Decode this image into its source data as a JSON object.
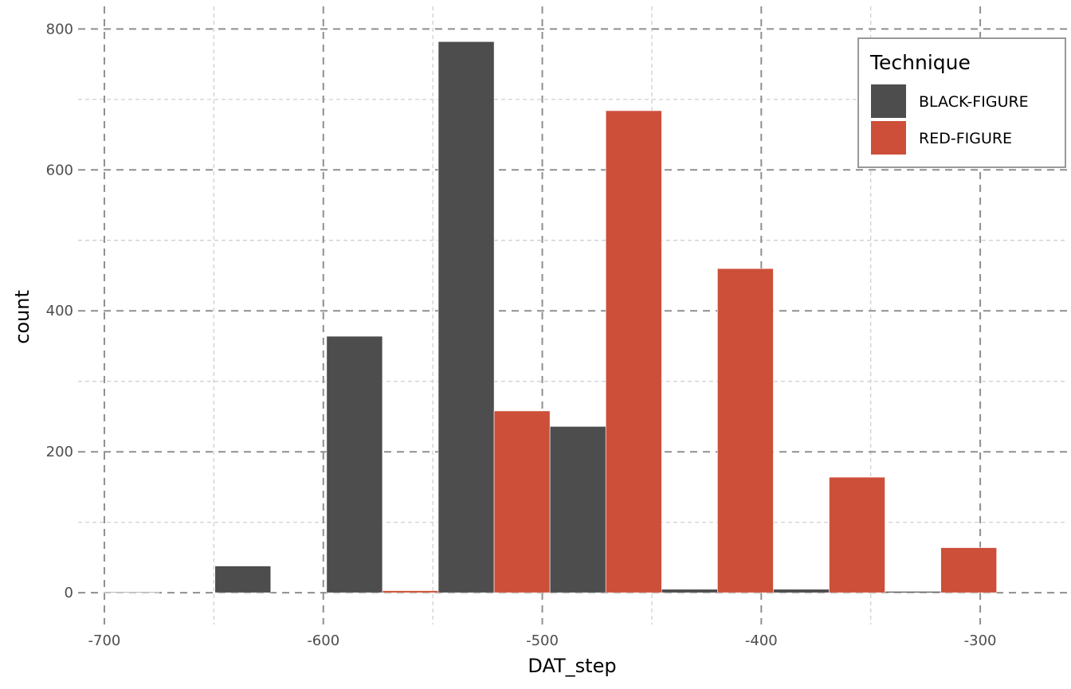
{
  "chart_data": {
    "type": "bar",
    "xlabel": "DAT_step",
    "ylabel": "count",
    "xlim": [
      -712,
      -260
    ],
    "ylim": [
      -45,
      832
    ],
    "x_major_ticks": [
      -700,
      -600,
      -500,
      -400,
      -300
    ],
    "x_tick_labels": [
      "-700",
      "-600",
      "-500",
      "-400",
      "-300"
    ],
    "x_minor_ticks": [
      -650,
      -550,
      -450,
      -350
    ],
    "y_major_ticks": [
      0,
      200,
      400,
      600,
      800
    ],
    "y_tick_labels": [
      "0",
      "200",
      "400",
      "600",
      "800"
    ],
    "y_minor_ticks": [
      100,
      300,
      500,
      700
    ],
    "grid": true,
    "bin_width": 51,
    "categories": [
      -675,
      -624,
      -573,
      -522,
      -471,
      -420,
      -369,
      -318
    ],
    "series": [
      {
        "name": "BLACK-FIGURE",
        "color": "#4d4d4d",
        "values": [
          1,
          38,
          364,
          782,
          236,
          5,
          5,
          2
        ]
      },
      {
        "name": "RED-FIGURE",
        "color": "#cd4f39",
        "values": [
          0,
          0,
          3,
          258,
          684,
          460,
          164,
          64
        ]
      }
    ],
    "legend": {
      "title": "Technique",
      "position": "top-right",
      "entries": [
        "BLACK-FIGURE",
        "RED-FIGURE"
      ]
    }
  }
}
